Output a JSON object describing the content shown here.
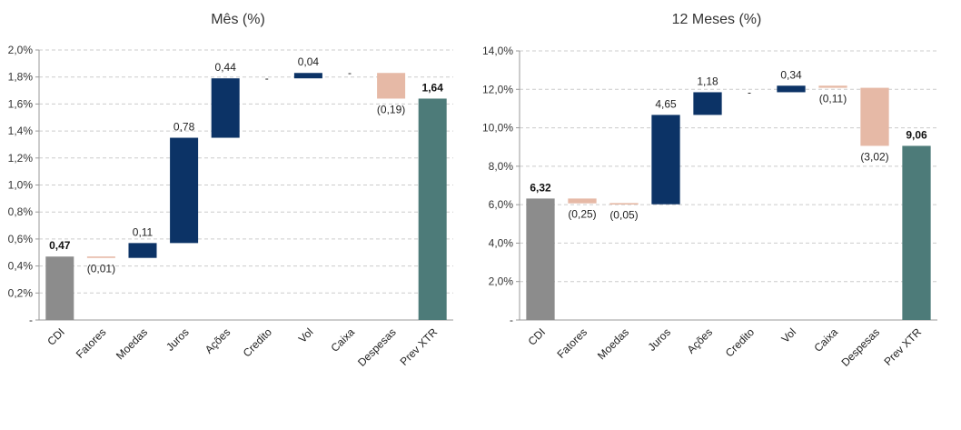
{
  "chart_data": [
    {
      "type": "bar",
      "subtype": "waterfall",
      "title": "Mês (%)",
      "categories": [
        "CDI",
        "Fatores",
        "Moedas",
        "Juros",
        "Ações",
        "Credito",
        "Vol",
        "Caixa",
        "Despesas",
        "Prev XTR"
      ],
      "values": [
        0.47,
        -0.01,
        0.11,
        0.78,
        0.44,
        0,
        0.04,
        0,
        -0.19,
        1.64
      ],
      "value_labels": [
        "0,47",
        "(0,01)",
        "0,11",
        "0,78",
        "0,44",
        "-",
        "0,04",
        "-",
        "(0,19)",
        "1,64"
      ],
      "bar_roles": [
        "total",
        "delta",
        "delta",
        "delta",
        "delta",
        "delta",
        "delta",
        "delta",
        "delta",
        "total"
      ],
      "ylim": [
        0,
        2.0
      ],
      "yticks": [
        0,
        0.2,
        0.4,
        0.6,
        0.8,
        1.0,
        1.2,
        1.4,
        1.6,
        1.8,
        2.0
      ],
      "ytick_labels": [
        "-",
        "0,2%",
        "0,4%",
        "0,6%",
        "0,8%",
        "1,0%",
        "1,2%",
        "1,4%",
        "1,6%",
        "1,8%",
        "2,0%"
      ],
      "grid": true,
      "legend": "none"
    },
    {
      "type": "bar",
      "subtype": "waterfall",
      "title": "12 Meses (%)",
      "categories": [
        "CDI",
        "Fatores",
        "Moedas",
        "Juros",
        "Ações",
        "Credito",
        "Vol",
        "Caixa",
        "Despesas",
        "Prev XTR"
      ],
      "values": [
        6.32,
        -0.25,
        -0.05,
        4.65,
        1.18,
        0,
        0.34,
        -0.11,
        -3.02,
        9.06
      ],
      "value_labels": [
        "6,32",
        "(0,25)",
        "(0,05)",
        "4,65",
        "1,18",
        "-",
        "0,34",
        "(0,11)",
        "(3,02)",
        "9,06"
      ],
      "bar_roles": [
        "total",
        "delta",
        "delta",
        "delta",
        "delta",
        "delta",
        "delta",
        "delta",
        "delta",
        "total"
      ],
      "ylim": [
        0,
        14.0
      ],
      "yticks": [
        0,
        2,
        4,
        6,
        8,
        10,
        12,
        14
      ],
      "ytick_labels": [
        "-",
        "2,0%",
        "4,0%",
        "6,0%",
        "8,0%",
        "10,0%",
        "12,0%",
        "14,0%"
      ],
      "grid": true,
      "legend": "none"
    }
  ],
  "colors": {
    "cdi_total": "#8c8c8c",
    "final_total": "#4d7b79",
    "positive": "#0c3366",
    "negative": "#e6b9a6"
  }
}
